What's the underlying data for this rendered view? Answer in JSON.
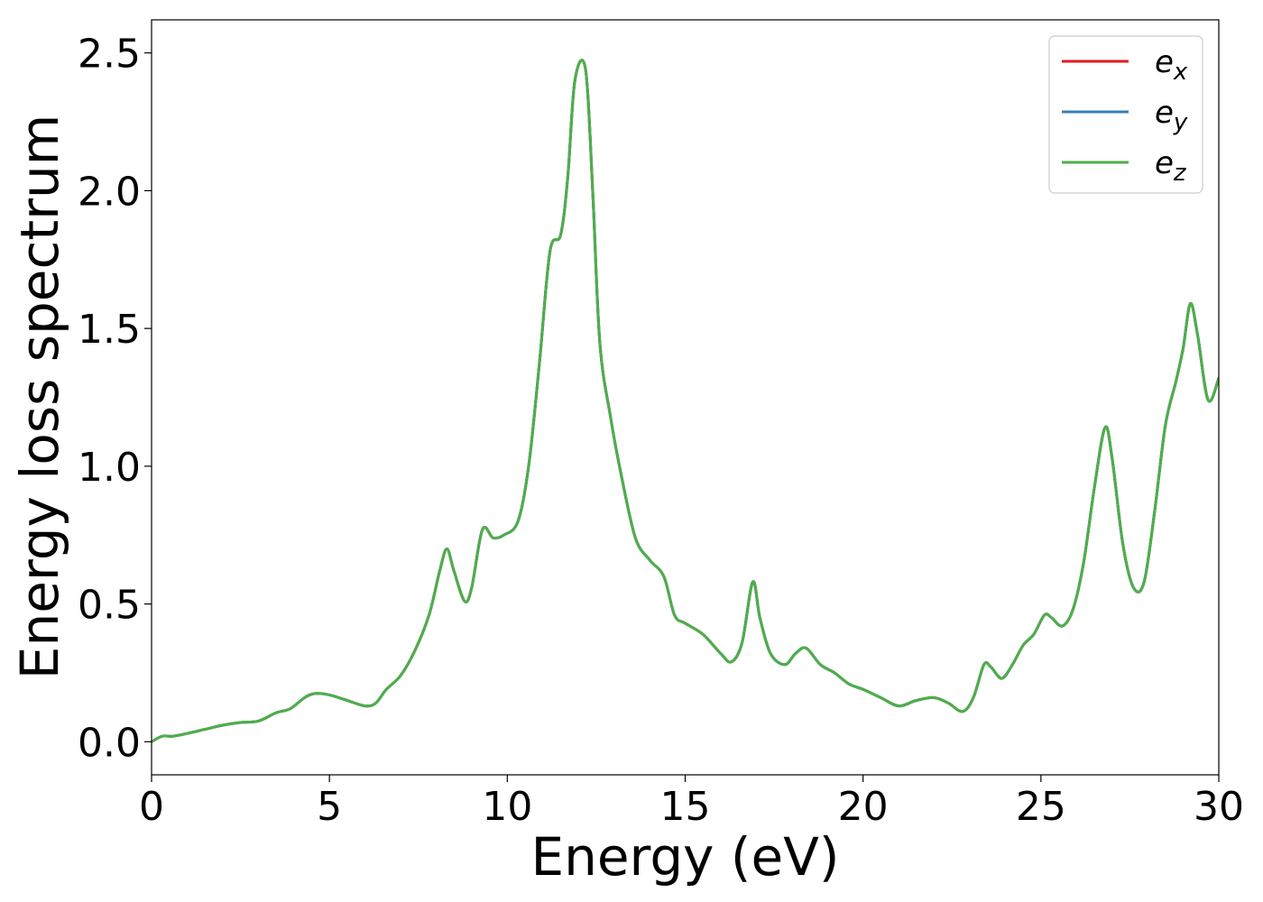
{
  "chart_data": {
    "type": "line",
    "title": "",
    "xlabel": "Energy (eV)",
    "ylabel": "Energy loss spectrum",
    "xlim": [
      0,
      30
    ],
    "ylim": [
      -0.12,
      2.62
    ],
    "xticks": [
      0,
      5,
      10,
      15,
      20,
      25,
      30
    ],
    "xtick_labels": [
      "0",
      "5",
      "10",
      "15",
      "20",
      "25",
      "30"
    ],
    "yticks": [
      0.0,
      0.5,
      1.0,
      1.5,
      2.0,
      2.5
    ],
    "ytick_labels": [
      "0.0",
      "0.5",
      "1.0",
      "1.5",
      "2.0",
      "2.5"
    ],
    "grid": false,
    "legend_position": "top-right",
    "x": [
      0,
      0.3,
      0.6,
      1.0,
      1.5,
      2.0,
      2.5,
      3.0,
      3.5,
      3.9,
      4.3,
      4.6,
      5.0,
      5.5,
      6.0,
      6.3,
      6.6,
      7.0,
      7.4,
      7.8,
      8.1,
      8.3,
      8.5,
      8.8,
      9.0,
      9.3,
      9.6,
      9.9,
      10.3,
      10.6,
      10.9,
      11.2,
      11.5,
      11.7,
      11.9,
      12.2,
      12.4,
      12.6,
      12.9,
      13.2,
      13.6,
      14.0,
      14.4,
      14.7,
      15.0,
      15.5,
      16.0,
      16.3,
      16.6,
      16.9,
      17.1,
      17.4,
      17.8,
      18.1,
      18.4,
      18.8,
      19.2,
      19.6,
      20.0,
      20.5,
      21.0,
      21.5,
      22.0,
      22.4,
      22.8,
      23.1,
      23.4,
      23.6,
      23.9,
      24.2,
      24.5,
      24.8,
      25.1,
      25.3,
      25.6,
      25.9,
      26.2,
      26.5,
      26.8,
      27.0,
      27.3,
      27.6,
      27.9,
      28.2,
      28.5,
      28.8,
      29.0,
      29.2,
      29.4,
      29.7,
      30.0
    ],
    "series": [
      {
        "name": "e_x",
        "color": "#e41a1c",
        "values": [
          0,
          0.02,
          0.02,
          0.03,
          0.045,
          0.06,
          0.07,
          0.075,
          0.105,
          0.12,
          0.16,
          0.175,
          0.17,
          0.15,
          0.13,
          0.14,
          0.19,
          0.24,
          0.33,
          0.46,
          0.62,
          0.7,
          0.62,
          0.51,
          0.56,
          0.77,
          0.74,
          0.75,
          0.8,
          1.0,
          1.37,
          1.78,
          1.84,
          2.05,
          2.4,
          2.44,
          2.0,
          1.45,
          1.18,
          0.97,
          0.74,
          0.66,
          0.6,
          0.46,
          0.43,
          0.39,
          0.32,
          0.29,
          0.36,
          0.58,
          0.45,
          0.32,
          0.28,
          0.32,
          0.34,
          0.28,
          0.25,
          0.21,
          0.19,
          0.16,
          0.13,
          0.15,
          0.16,
          0.14,
          0.11,
          0.16,
          0.28,
          0.27,
          0.23,
          0.28,
          0.35,
          0.39,
          0.46,
          0.45,
          0.42,
          0.48,
          0.65,
          0.92,
          1.14,
          1.03,
          0.72,
          0.56,
          0.58,
          0.84,
          1.15,
          1.31,
          1.43,
          1.59,
          1.48,
          1.24,
          1.32
        ]
      },
      {
        "name": "e_y",
        "color": "#377eb8",
        "values": [
          0,
          0.02,
          0.02,
          0.03,
          0.045,
          0.06,
          0.07,
          0.075,
          0.105,
          0.12,
          0.16,
          0.175,
          0.17,
          0.15,
          0.13,
          0.14,
          0.19,
          0.24,
          0.33,
          0.46,
          0.62,
          0.7,
          0.62,
          0.51,
          0.56,
          0.77,
          0.74,
          0.75,
          0.8,
          1.0,
          1.37,
          1.78,
          1.84,
          2.05,
          2.4,
          2.44,
          2.0,
          1.45,
          1.18,
          0.97,
          0.74,
          0.66,
          0.6,
          0.46,
          0.43,
          0.39,
          0.32,
          0.29,
          0.36,
          0.58,
          0.45,
          0.32,
          0.28,
          0.32,
          0.34,
          0.28,
          0.25,
          0.21,
          0.19,
          0.16,
          0.13,
          0.15,
          0.16,
          0.14,
          0.11,
          0.16,
          0.28,
          0.27,
          0.23,
          0.28,
          0.35,
          0.39,
          0.46,
          0.45,
          0.42,
          0.48,
          0.65,
          0.92,
          1.14,
          1.03,
          0.72,
          0.56,
          0.58,
          0.84,
          1.15,
          1.31,
          1.43,
          1.59,
          1.48,
          1.24,
          1.32
        ]
      },
      {
        "name": "e_z",
        "color": "#4daf4a",
        "values": [
          0,
          0.02,
          0.02,
          0.03,
          0.045,
          0.06,
          0.07,
          0.075,
          0.105,
          0.12,
          0.16,
          0.175,
          0.17,
          0.15,
          0.13,
          0.14,
          0.19,
          0.24,
          0.33,
          0.46,
          0.62,
          0.7,
          0.62,
          0.51,
          0.56,
          0.77,
          0.74,
          0.75,
          0.8,
          1.0,
          1.37,
          1.78,
          1.84,
          2.05,
          2.4,
          2.44,
          2.0,
          1.45,
          1.18,
          0.97,
          0.74,
          0.66,
          0.6,
          0.46,
          0.43,
          0.39,
          0.32,
          0.29,
          0.36,
          0.58,
          0.45,
          0.32,
          0.28,
          0.32,
          0.34,
          0.28,
          0.25,
          0.21,
          0.19,
          0.16,
          0.13,
          0.15,
          0.16,
          0.14,
          0.11,
          0.16,
          0.28,
          0.27,
          0.23,
          0.28,
          0.35,
          0.39,
          0.46,
          0.45,
          0.42,
          0.48,
          0.65,
          0.92,
          1.14,
          1.03,
          0.72,
          0.56,
          0.58,
          0.84,
          1.15,
          1.31,
          1.43,
          1.59,
          1.48,
          1.24,
          1.32
        ]
      }
    ],
    "legend": [
      {
        "base": "e",
        "sub": "x"
      },
      {
        "base": "e",
        "sub": "y"
      },
      {
        "base": "e",
        "sub": "z"
      }
    ]
  }
}
